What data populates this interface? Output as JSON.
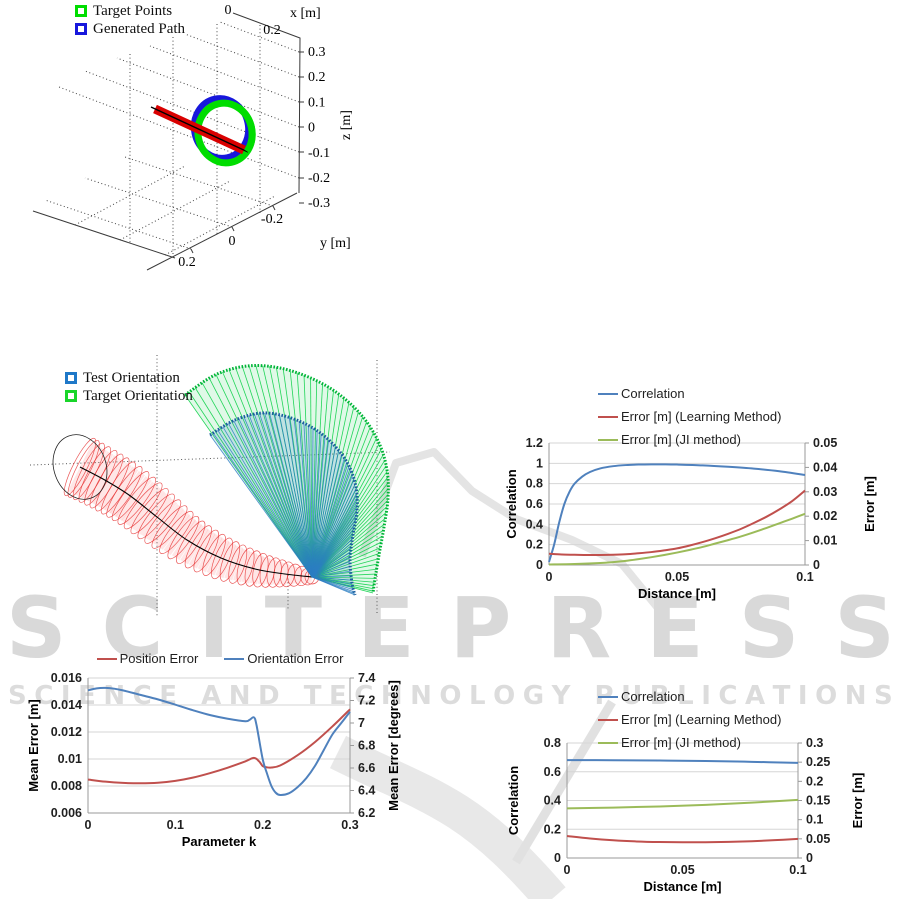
{
  "watermark": {
    "title": "SCITEPRESS",
    "subtitle": "SCIENCE AND TECHNOLOGY PUBLICATIONS",
    "title_color": "#d9d9d9",
    "subtitle_color": "#dcdcdc"
  },
  "chart_data": [
    {
      "id": "path3d",
      "type": "scatter",
      "title": "",
      "legend": [
        {
          "label": "Target Points",
          "color": "#00dd00"
        },
        {
          "label": "Generated Path",
          "color": "#1717dc"
        }
      ],
      "axes": {
        "x": {
          "label": "x [m]",
          "ticks": [
            "0",
            "0.2"
          ]
        },
        "y": {
          "label": "y [m]",
          "ticks": [
            "0.2",
            "0",
            "-0.2"
          ]
        },
        "z": {
          "label": "z [m]",
          "ticks": [
            "0.3",
            "0.2",
            "0.1",
            "0",
            "-0.1",
            "-0.2",
            "-0.3"
          ]
        }
      },
      "elements": [
        {
          "name": "target-points-ring",
          "color": "#00dd00"
        },
        {
          "name": "generated-path-ring",
          "color": "#1717dc"
        },
        {
          "name": "needle-rod",
          "color": "#d90000"
        }
      ]
    },
    {
      "id": "orientation",
      "type": "scatter",
      "legend": [
        {
          "label": "Test Orientation",
          "color": "#1f78c8"
        },
        {
          "label": "Target Orientation",
          "color": "#19d52a"
        }
      ],
      "elements": [
        {
          "name": "test-orientation-fan",
          "color": "#2b7ec2"
        },
        {
          "name": "target-orientation-fan",
          "color": "#00cf3f"
        },
        {
          "name": "workspace-tube",
          "color": "#e63030"
        }
      ]
    },
    {
      "id": "correlation-vs-distance-1",
      "type": "line",
      "x_label": "Distance [m]",
      "x_ticks": [
        "0",
        "0.05",
        "0.1"
      ],
      "x_range": [
        0,
        0.1
      ],
      "left_axis": {
        "label": "Correlation",
        "ticks": [
          "0",
          "0.2",
          "0.4",
          "0.6",
          "0.8",
          "1",
          "1.2"
        ],
        "range": [
          0,
          1.2
        ]
      },
      "right_axis": {
        "label": "Error [m]",
        "ticks": [
          "0",
          "0.01",
          "0.02",
          "0.03",
          "0.04",
          "0.05"
        ],
        "range": [
          0,
          0.05
        ]
      },
      "series": [
        {
          "name": "Correlation",
          "color": "#4F81BD",
          "axis": "left",
          "points": [
            [
              0,
              0.03
            ],
            [
              0.002,
              0.2
            ],
            [
              0.004,
              0.42
            ],
            [
              0.006,
              0.6
            ],
            [
              0.008,
              0.72
            ],
            [
              0.01,
              0.8
            ],
            [
              0.013,
              0.87
            ],
            [
              0.016,
              0.915
            ],
            [
              0.02,
              0.95
            ],
            [
              0.025,
              0.972
            ],
            [
              0.03,
              0.983
            ],
            [
              0.035,
              0.988
            ],
            [
              0.04,
              0.99
            ],
            [
              0.045,
              0.99
            ],
            [
              0.05,
              0.988
            ],
            [
              0.06,
              0.98
            ],
            [
              0.07,
              0.966
            ],
            [
              0.08,
              0.948
            ],
            [
              0.09,
              0.922
            ],
            [
              0.1,
              0.885
            ]
          ]
        },
        {
          "name": "Error [m] (Learning Method)",
          "color": "#C0504D",
          "axis": "right",
          "points": [
            [
              0,
              0.0046
            ],
            [
              0.005,
              0.0043
            ],
            [
              0.01,
              0.0042
            ],
            [
              0.015,
              0.0041
            ],
            [
              0.02,
              0.0041
            ],
            [
              0.025,
              0.0042
            ],
            [
              0.03,
              0.0044
            ],
            [
              0.035,
              0.0048
            ],
            [
              0.04,
              0.0053
            ],
            [
              0.045,
              0.006
            ],
            [
              0.05,
              0.0068
            ],
            [
              0.055,
              0.008
            ],
            [
              0.06,
              0.0094
            ],
            [
              0.065,
              0.011
            ],
            [
              0.07,
              0.0128
            ],
            [
              0.075,
              0.0148
            ],
            [
              0.08,
              0.0172
            ],
            [
              0.085,
              0.0198
            ],
            [
              0.09,
              0.0228
            ],
            [
              0.095,
              0.0262
            ],
            [
              0.1,
              0.0305
            ]
          ]
        },
        {
          "name": "Error [m] (JI method)",
          "color": "#9BBB59",
          "axis": "right",
          "points": [
            [
              0,
              0.0002
            ],
            [
              0.01,
              0.0004
            ],
            [
              0.02,
              0.0008
            ],
            [
              0.025,
              0.0012
            ],
            [
              0.03,
              0.0017
            ],
            [
              0.035,
              0.0024
            ],
            [
              0.04,
              0.0032
            ],
            [
              0.045,
              0.0041
            ],
            [
              0.05,
              0.0051
            ],
            [
              0.055,
              0.0062
            ],
            [
              0.06,
              0.0074
            ],
            [
              0.065,
              0.0088
            ],
            [
              0.07,
              0.0102
            ],
            [
              0.075,
              0.0117
            ],
            [
              0.08,
              0.0134
            ],
            [
              0.085,
              0.0152
            ],
            [
              0.09,
              0.0171
            ],
            [
              0.095,
              0.019
            ],
            [
              0.1,
              0.021
            ]
          ]
        }
      ]
    },
    {
      "id": "error-vs-parameter-k",
      "type": "line",
      "x_label": "Parameter k",
      "x_ticks": [
        "0",
        "0.1",
        "0.2",
        "0.3"
      ],
      "x_range": [
        0,
        0.3
      ],
      "left_axis": {
        "label": "Mean Error [m]",
        "ticks": [
          "0.006",
          "0.008",
          "0.01",
          "0.012",
          "0.014",
          "0.016"
        ],
        "range": [
          0.006,
          0.016
        ]
      },
      "right_axis": {
        "label": "Mean Error [degrees]",
        "ticks": [
          "6.2",
          "6.4",
          "6.6",
          "6.8",
          "7",
          "7.2",
          "7.4"
        ],
        "range": [
          6.2,
          7.4
        ]
      },
      "series": [
        {
          "name": "Position Error",
          "color": "#C0504D",
          "axis": "left",
          "points": [
            [
              0,
              0.00848
            ],
            [
              0.02,
              0.00832
            ],
            [
              0.04,
              0.00823
            ],
            [
              0.06,
              0.0082
            ],
            [
              0.08,
              0.00824
            ],
            [
              0.1,
              0.00838
            ],
            [
              0.12,
              0.00862
            ],
            [
              0.14,
              0.00896
            ],
            [
              0.16,
              0.00936
            ],
            [
              0.18,
              0.00982
            ],
            [
              0.19,
              0.01008
            ],
            [
              0.196,
              0.00982
            ],
            [
              0.2,
              0.00948
            ],
            [
              0.205,
              0.00938
            ],
            [
              0.21,
              0.00937
            ],
            [
              0.22,
              0.00952
            ],
            [
              0.24,
              0.01028
            ],
            [
              0.26,
              0.01126
            ],
            [
              0.28,
              0.01242
            ],
            [
              0.3,
              0.01368
            ]
          ]
        },
        {
          "name": "Orientation Error",
          "color": "#4F81BD",
          "axis": "right",
          "points": [
            [
              0,
              7.29
            ],
            [
              0.01,
              7.308
            ],
            [
              0.02,
              7.312
            ],
            [
              0.03,
              7.305
            ],
            [
              0.04,
              7.29
            ],
            [
              0.06,
              7.25
            ],
            [
              0.08,
              7.21
            ],
            [
              0.1,
              7.163
            ],
            [
              0.12,
              7.114
            ],
            [
              0.14,
              7.07
            ],
            [
              0.16,
              7.038
            ],
            [
              0.18,
              7.016
            ],
            [
              0.185,
              7.028
            ],
            [
              0.19,
              7.05
            ],
            [
              0.193,
              6.98
            ],
            [
              0.2,
              6.68
            ],
            [
              0.205,
              6.55
            ],
            [
              0.21,
              6.44
            ],
            [
              0.215,
              6.38
            ],
            [
              0.22,
              6.36
            ],
            [
              0.23,
              6.375
            ],
            [
              0.24,
              6.43
            ],
            [
              0.25,
              6.51
            ],
            [
              0.26,
              6.62
            ],
            [
              0.27,
              6.76
            ],
            [
              0.28,
              6.9
            ],
            [
              0.29,
              7.0
            ],
            [
              0.3,
              7.1
            ]
          ]
        }
      ]
    },
    {
      "id": "correlation-vs-distance-2",
      "type": "line",
      "x_label": "Distance [m]",
      "x_ticks": [
        "0",
        "0.05",
        "0.1"
      ],
      "x_range": [
        0,
        0.1
      ],
      "left_axis": {
        "label": "Correlation",
        "ticks": [
          "0",
          "0.2",
          "0.4",
          "0.6",
          "0.8"
        ],
        "range": [
          0,
          0.8
        ]
      },
      "right_axis": {
        "label": "Error [m]",
        "ticks": [
          "0",
          "0.05",
          "0.1",
          "0.15",
          "0.2",
          "0.25",
          "0.3"
        ],
        "range": [
          0,
          0.3
        ]
      },
      "series": [
        {
          "name": "Correlation",
          "color": "#4F81BD",
          "axis": "left",
          "points": [
            [
              0,
              0.681
            ],
            [
              0.02,
              0.68
            ],
            [
              0.04,
              0.678
            ],
            [
              0.06,
              0.675
            ],
            [
              0.08,
              0.669
            ],
            [
              0.1,
              0.662
            ]
          ]
        },
        {
          "name": "Error [m] (Learning Method)",
          "color": "#C0504D",
          "axis": "right",
          "points": [
            [
              0,
              0.0575
            ],
            [
              0.01,
              0.051
            ],
            [
              0.02,
              0.0462
            ],
            [
              0.03,
              0.0432
            ],
            [
              0.04,
              0.0416
            ],
            [
              0.05,
              0.041
            ],
            [
              0.06,
              0.0411
            ],
            [
              0.07,
              0.042
            ],
            [
              0.08,
              0.0438
            ],
            [
              0.09,
              0.0465
            ],
            [
              0.1,
              0.05
            ]
          ]
        },
        {
          "name": "Error [m] (JI method)",
          "color": "#9BBB59",
          "axis": "right",
          "points": [
            [
              0,
              0.1295
            ],
            [
              0.02,
              0.1315
            ],
            [
              0.04,
              0.1345
            ],
            [
              0.06,
              0.1385
            ],
            [
              0.08,
              0.1445
            ],
            [
              0.1,
              0.1515
            ]
          ]
        }
      ]
    }
  ]
}
